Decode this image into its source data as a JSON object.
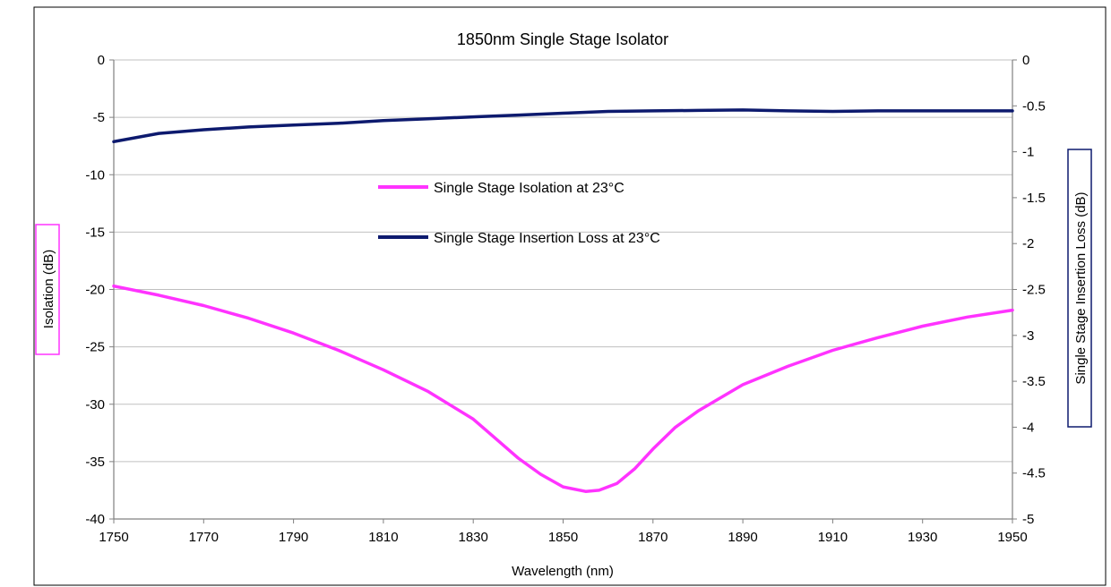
{
  "chart_data": {
    "type": "line",
    "title": "1850nm Single Stage Isolator",
    "xlabel": "Wavelength (nm)",
    "ylabel": "Isolation (dB)",
    "y2label": "Single Stage Insertion Loss (dB)",
    "xlim": [
      1750,
      1950
    ],
    "ylim": [
      -40,
      0
    ],
    "y2lim": [
      -5,
      0
    ],
    "grid": true,
    "legend_placement": "center",
    "xticks": [
      "1750",
      "1770",
      "1790",
      "1810",
      "1830",
      "1850",
      "1870",
      "1890",
      "1910",
      "1930",
      "1950"
    ],
    "yticks": [
      "0",
      "-5",
      "-10",
      "-15",
      "-20",
      "-25",
      "-30",
      "-35",
      "-40"
    ],
    "y2ticks": [
      "0",
      "-0.5",
      "-1",
      "-1.5",
      "-2",
      "-2.5",
      "-3",
      "-3.5",
      "-4",
      "-4.5",
      "-5"
    ],
    "series": [
      {
        "name": "Single Stage Isolation at 23°C",
        "axis": "left",
        "color": "#ff33ff",
        "x": [
          1750,
          1760,
          1770,
          1780,
          1790,
          1800,
          1810,
          1820,
          1830,
          1835,
          1840,
          1845,
          1850,
          1855,
          1858,
          1862,
          1866,
          1870,
          1875,
          1880,
          1890,
          1900,
          1910,
          1920,
          1930,
          1940,
          1950
        ],
        "y": [
          -19.7,
          -20.5,
          -21.4,
          -22.5,
          -23.8,
          -25.3,
          -27.0,
          -28.9,
          -31.3,
          -33.0,
          -34.7,
          -36.1,
          -37.2,
          -37.6,
          -37.5,
          -36.9,
          -35.6,
          -33.9,
          -32.0,
          -30.6,
          -28.3,
          -26.7,
          -25.3,
          -24.2,
          -23.2,
          -22.4,
          -21.8
        ]
      },
      {
        "name": "Single Stage Insertion Loss at 23°C",
        "axis": "right",
        "color": "#0d1a6e",
        "x": [
          1750,
          1760,
          1770,
          1780,
          1790,
          1800,
          1810,
          1820,
          1830,
          1840,
          1850,
          1860,
          1870,
          1880,
          1890,
          1900,
          1910,
          1920,
          1930,
          1940,
          1950
        ],
        "y": [
          -0.89,
          -0.8,
          -0.76,
          -0.73,
          -0.71,
          -0.69,
          -0.66,
          -0.64,
          -0.62,
          -0.6,
          -0.58,
          -0.56,
          -0.555,
          -0.55,
          -0.545,
          -0.555,
          -0.56,
          -0.555,
          -0.555,
          -0.555,
          -0.555
        ]
      }
    ]
  }
}
